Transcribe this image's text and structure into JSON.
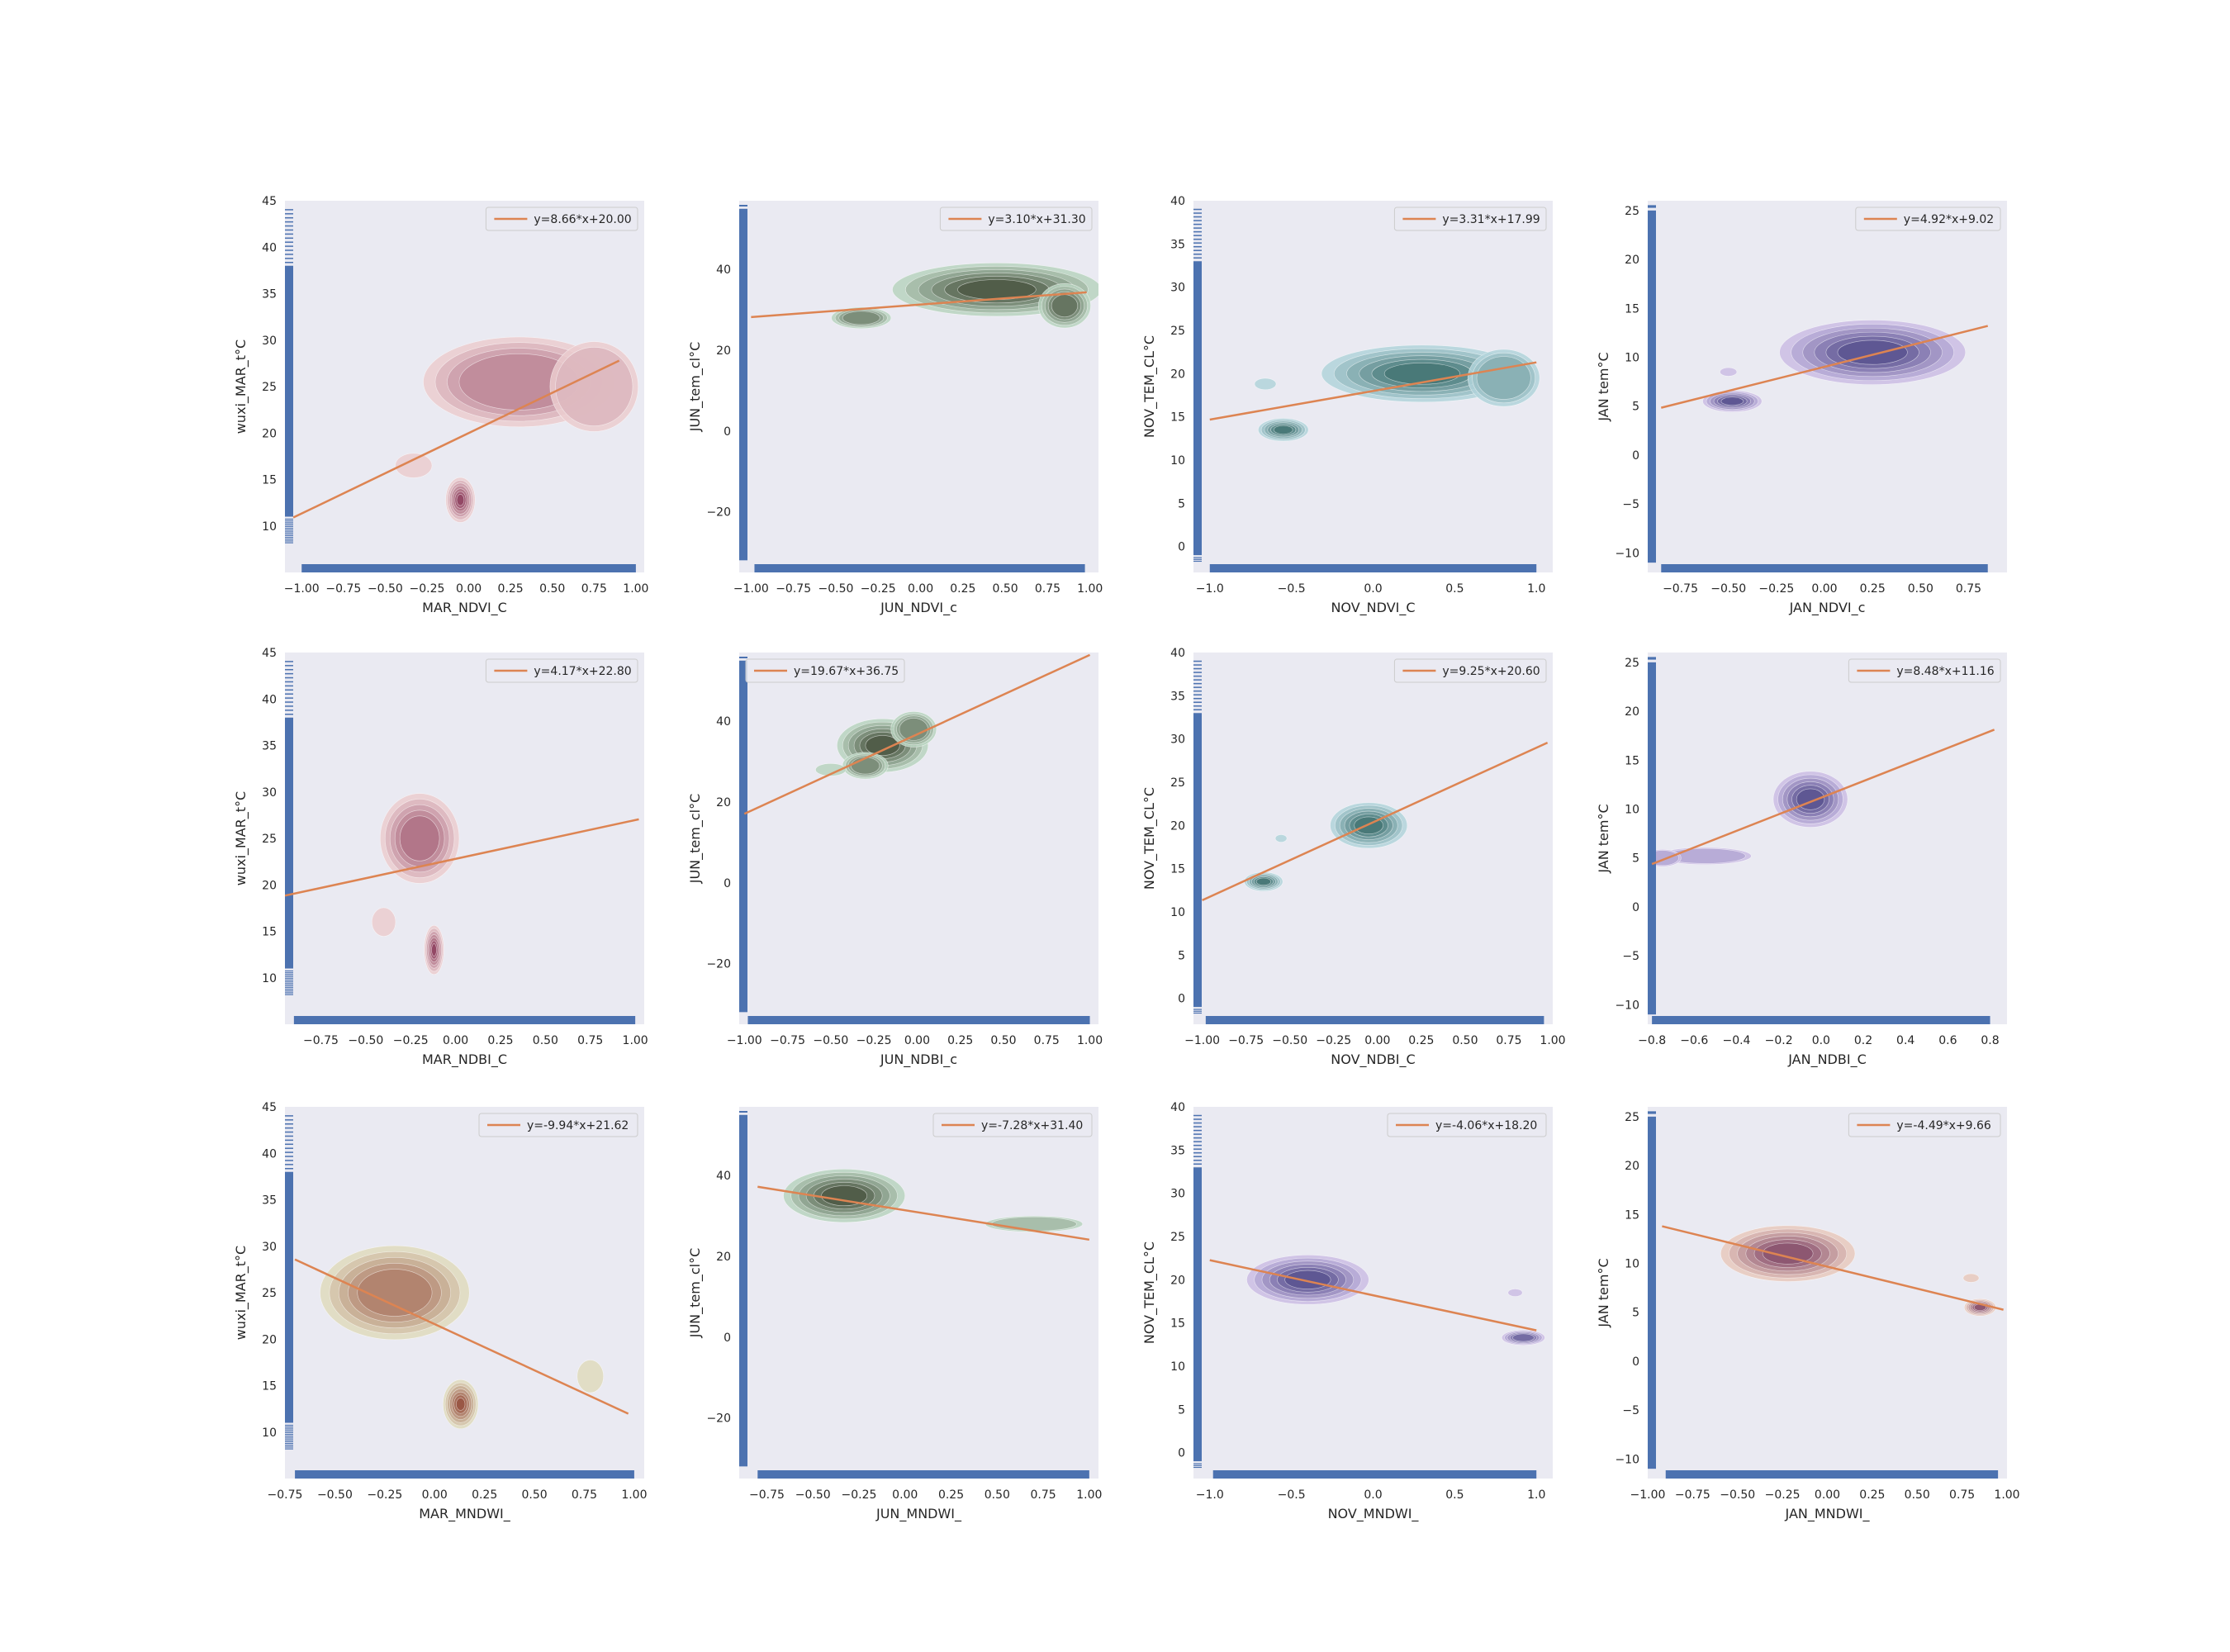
{
  "colors": {
    "background": "#eaeaf2",
    "rug": "#4c72b0",
    "fit_line": "#dd8452",
    "legend_bg": "#eaeaf2",
    "legend_border": "#cccccc"
  },
  "chart_data": [
    {
      "type": "scatter",
      "xlabel": "MAR_NDVI_C",
      "ylabel": "wuxi_MAR_t°C",
      "xlim": [
        -1.1,
        1.05
      ],
      "ylim": [
        5,
        45
      ],
      "xticks": [
        -1.0,
        -0.75,
        -0.5,
        -0.25,
        0.0,
        0.25,
        0.5,
        0.75,
        1.0
      ],
      "xtick_labels": [
        "−1.00",
        "−0.75",
        "−0.50",
        "−0.25",
        "0.00",
        "0.25",
        "0.50",
        "0.75",
        "1.00"
      ],
      "yticks": [
        10,
        15,
        20,
        25,
        30,
        35,
        40,
        45
      ],
      "ytick_labels": [
        "10",
        "15",
        "20",
        "25",
        "30",
        "35",
        "40",
        "45"
      ],
      "fit": {
        "label": "y=8.66*x+20.00",
        "slope": 8.66,
        "intercept": 20.0,
        "x_range": [
          -1.05,
          0.9
        ]
      },
      "palette": "reds",
      "density": [
        {
          "x": 0.3,
          "y": 25.5,
          "sx": 0.26,
          "sy": 2.2,
          "w": 0.5
        },
        {
          "x": 0.75,
          "y": 25.0,
          "sx": 0.12,
          "sy": 2.2,
          "w": 0.3
        },
        {
          "x": -0.05,
          "y": 12.8,
          "sx": 0.04,
          "sy": 1.1,
          "w": 0.9
        },
        {
          "x": -0.33,
          "y": 16.5,
          "sx": 0.05,
          "sy": 0.6,
          "w": 0.15
        }
      ],
      "rug_x": [
        -1.0,
        1.0
      ],
      "rug_y": [
        11,
        38
      ],
      "legend_pos": "upper right"
    },
    {
      "type": "scatter",
      "xlabel": "JUN_NDVI_c",
      "ylabel": "JUN_tem_cl°C",
      "xlim": [
        -1.07,
        1.05
      ],
      "ylim": [
        -35,
        57
      ],
      "xticks": [
        -1.0,
        -0.75,
        -0.5,
        -0.25,
        0.0,
        0.25,
        0.5,
        0.75,
        1.0
      ],
      "xtick_labels": [
        "−1.00",
        "−0.75",
        "−0.50",
        "−0.25",
        "0.00",
        "0.25",
        "0.50",
        "0.75",
        "1.00"
      ],
      "yticks": [
        -20,
        0,
        20,
        40
      ],
      "ytick_labels": [
        "−20",
        "0",
        "20",
        "40"
      ],
      "fit": {
        "label": "y=3.10*x+31.30",
        "slope": 3.1,
        "intercept": 31.3,
        "x_range": [
          -1.0,
          0.98
        ]
      },
      "palette": "greens",
      "density": [
        {
          "x": 0.45,
          "y": 35,
          "sx": 0.28,
          "sy": 3,
          "w": 0.7
        },
        {
          "x": 0.85,
          "y": 31,
          "sx": 0.07,
          "sy": 2.5,
          "w": 0.6
        },
        {
          "x": -0.35,
          "y": 28,
          "sx": 0.08,
          "sy": 1.2,
          "w": 0.5
        }
      ],
      "rug_x": [
        -0.98,
        0.97
      ],
      "rug_y": [
        -32,
        55
      ],
      "legend_pos": "upper right"
    },
    {
      "type": "scatter",
      "xlabel": "NOV_NDVI_C",
      "ylabel": "NOV_TEM_CL°C",
      "xlim": [
        -1.1,
        1.1
      ],
      "ylim": [
        -3,
        40
      ],
      "xticks": [
        -1.0,
        -0.5,
        0.0,
        0.5,
        1.0
      ],
      "xtick_labels": [
        "−1.0",
        "−0.5",
        "0.0",
        "0.5",
        "1.0"
      ],
      "yticks": [
        0,
        5,
        10,
        15,
        20,
        25,
        30,
        35,
        40
      ],
      "ytick_labels": [
        "0",
        "5",
        "10",
        "15",
        "20",
        "25",
        "30",
        "35",
        "40"
      ],
      "fit": {
        "label": "y=3.31*x+17.99",
        "slope": 3.31,
        "intercept": 17.99,
        "x_range": [
          -1.0,
          1.0
        ]
      },
      "palette": "teals",
      "density": [
        {
          "x": 0.3,
          "y": 20,
          "sx": 0.28,
          "sy": 1.5,
          "w": 0.8
        },
        {
          "x": 0.8,
          "y": 19.5,
          "sx": 0.1,
          "sy": 1.5,
          "w": 0.4
        },
        {
          "x": -0.55,
          "y": 13.5,
          "sx": 0.07,
          "sy": 0.6,
          "w": 0.7
        },
        {
          "x": -0.66,
          "y": 18.8,
          "sx": 0.03,
          "sy": 0.3,
          "w": 0.1
        }
      ],
      "rug_x": [
        -1.0,
        1.0
      ],
      "rug_y": [
        -1,
        33
      ],
      "legend_pos": "upper right"
    },
    {
      "type": "scatter",
      "xlabel": "JAN_NDVI_c",
      "ylabel": "JAN tem°C",
      "xlim": [
        -0.92,
        0.95
      ],
      "ylim": [
        -12,
        26
      ],
      "xticks": [
        -0.75,
        -0.5,
        -0.25,
        0.0,
        0.25,
        0.5,
        0.75
      ],
      "xtick_labels": [
        "−0.75",
        "−0.50",
        "−0.25",
        "0.00",
        "0.25",
        "0.50",
        "0.75"
      ],
      "yticks": [
        -10,
        -5,
        0,
        5,
        10,
        15,
        20,
        25
      ],
      "ytick_labels": [
        "−10",
        "−5",
        "0",
        "5",
        "10",
        "15",
        "20",
        "25"
      ],
      "fit": {
        "label": "y=4.92*x+9.02",
        "slope": 4.92,
        "intercept": 9.02,
        "x_range": [
          -0.85,
          0.85
        ]
      },
      "palette": "purples",
      "density": [
        {
          "x": 0.25,
          "y": 10.5,
          "sx": 0.22,
          "sy": 1.5,
          "w": 0.8
        },
        {
          "x": -0.48,
          "y": 5.5,
          "sx": 0.07,
          "sy": 0.5,
          "w": 0.7
        },
        {
          "x": -0.5,
          "y": 8.5,
          "sx": 0.02,
          "sy": 0.2,
          "w": 0.1
        }
      ],
      "rug_x": [
        -0.85,
        0.85
      ],
      "rug_y": [
        -11,
        25
      ],
      "legend_pos": "upper right"
    },
    {
      "type": "scatter",
      "xlabel": "MAR_NDBI_C",
      "ylabel": "wuxi_MAR_t°C",
      "xlim": [
        -0.95,
        1.05
      ],
      "ylim": [
        5,
        45
      ],
      "xticks": [
        -0.75,
        -0.5,
        -0.25,
        0.0,
        0.25,
        0.5,
        0.75,
        1.0
      ],
      "xtick_labels": [
        "−0.75",
        "−0.50",
        "−0.25",
        "0.00",
        "0.25",
        "0.50",
        "0.75",
        "1.00"
      ],
      "yticks": [
        10,
        15,
        20,
        25,
        30,
        35,
        40,
        45
      ],
      "ytick_labels": [
        "10",
        "15",
        "20",
        "25",
        "30",
        "35",
        "40",
        "45"
      ],
      "fit": {
        "label": "y=4.17*x+22.80",
        "slope": 4.17,
        "intercept": 22.8,
        "x_range": [
          -0.95,
          1.02
        ]
      },
      "palette": "reds",
      "density": [
        {
          "x": -0.2,
          "y": 25,
          "sx": 0.1,
          "sy": 2.2,
          "w": 0.6
        },
        {
          "x": -0.12,
          "y": 13,
          "sx": 0.025,
          "sy": 1.2,
          "w": 0.9
        },
        {
          "x": -0.4,
          "y": 16,
          "sx": 0.03,
          "sy": 0.7,
          "w": 0.15
        }
      ],
      "rug_x": [
        -0.9,
        1.0
      ],
      "rug_y": [
        11,
        38
      ],
      "legend_pos": "upper right"
    },
    {
      "type": "scatter",
      "xlabel": "JUN_NDBI_c",
      "ylabel": "JUN_tem_cl°C",
      "xlim": [
        -1.03,
        1.05
      ],
      "ylim": [
        -35,
        57
      ],
      "xticks": [
        -1.0,
        -0.75,
        -0.5,
        -0.25,
        0.0,
        0.25,
        0.5,
        0.75,
        1.0
      ],
      "xtick_labels": [
        "−1.00",
        "−0.75",
        "−0.50",
        "−0.25",
        "0.00",
        "0.25",
        "0.50",
        "0.75",
        "1.00"
      ],
      "yticks": [
        -20,
        0,
        20,
        40
      ],
      "ytick_labels": [
        "−20",
        "0",
        "20",
        "40"
      ],
      "fit": {
        "label": "y=19.67*x+36.75",
        "slope": 19.67,
        "intercept": 36.75,
        "x_range": [
          -1.0,
          1.0
        ]
      },
      "palette": "greens",
      "density": [
        {
          "x": -0.2,
          "y": 34,
          "sx": 0.12,
          "sy": 3,
          "w": 0.8
        },
        {
          "x": -0.02,
          "y": 38,
          "sx": 0.06,
          "sy": 2,
          "w": 0.5
        },
        {
          "x": -0.3,
          "y": 29,
          "sx": 0.06,
          "sy": 1.5,
          "w": 0.5
        },
        {
          "x": -0.5,
          "y": 28,
          "sx": 0.04,
          "sy": 0.7,
          "w": 0.15
        }
      ],
      "rug_x": [
        -0.98,
        1.0
      ],
      "rug_y": [
        -32,
        55
      ],
      "legend_pos": "upper left"
    },
    {
      "type": "scatter",
      "xlabel": "NOV_NDBI_C",
      "ylabel": "NOV_TEM_CL°C",
      "xlim": [
        -1.05,
        1.0
      ],
      "ylim": [
        -3,
        40
      ],
      "xticks": [
        -1.0,
        -0.75,
        -0.5,
        -0.25,
        0.0,
        0.25,
        0.5,
        0.75,
        1.0
      ],
      "xtick_labels": [
        "−1.00",
        "−0.75",
        "−0.50",
        "−0.25",
        "0.00",
        "0.25",
        "0.50",
        "0.75",
        "1.00"
      ],
      "yticks": [
        0,
        5,
        10,
        15,
        20,
        25,
        30,
        35,
        40
      ],
      "ytick_labels": [
        "0",
        "5",
        "10",
        "15",
        "20",
        "25",
        "30",
        "35",
        "40"
      ],
      "fit": {
        "label": "y=9.25*x+20.60",
        "slope": 9.25,
        "intercept": 20.6,
        "x_range": [
          -1.0,
          0.97
        ]
      },
      "palette": "teals",
      "density": [
        {
          "x": -0.05,
          "y": 20,
          "sx": 0.1,
          "sy": 1.2,
          "w": 0.8
        },
        {
          "x": -0.65,
          "y": 13.5,
          "sx": 0.05,
          "sy": 0.5,
          "w": 0.7
        },
        {
          "x": -0.55,
          "y": 18.5,
          "sx": 0.015,
          "sy": 0.2,
          "w": 0.08
        }
      ],
      "rug_x": [
        -0.98,
        0.95
      ],
      "rug_y": [
        -1,
        33
      ],
      "legend_pos": "upper right"
    },
    {
      "type": "scatter",
      "xlabel": "JAN_NDBI_C",
      "ylabel": "JAN tem°C",
      "xlim": [
        -0.82,
        0.88
      ],
      "ylim": [
        -12,
        26
      ],
      "xticks": [
        -0.8,
        -0.6,
        -0.4,
        -0.2,
        0.0,
        0.2,
        0.4,
        0.6,
        0.8
      ],
      "xtick_labels": [
        "−0.8",
        "−0.6",
        "−0.4",
        "−0.2",
        "0.0",
        "0.2",
        "0.4",
        "0.6",
        "0.8"
      ],
      "yticks": [
        -10,
        -5,
        0,
        5,
        10,
        15,
        20,
        25
      ],
      "ytick_labels": [
        "−10",
        "−5",
        "0",
        "5",
        "10",
        "15",
        "20",
        "25"
      ],
      "fit": {
        "label": "y=8.48*x+11.16",
        "slope": 8.48,
        "intercept": 11.16,
        "x_range": [
          -0.8,
          0.82
        ]
      },
      "palette": "purples",
      "density": [
        {
          "x": -0.05,
          "y": 11,
          "sx": 0.08,
          "sy": 1.3,
          "w": 0.8
        },
        {
          "x": -0.55,
          "y": 5.2,
          "sx": 0.1,
          "sy": 0.4,
          "w": 0.25
        },
        {
          "x": -0.75,
          "y": 5,
          "sx": 0.04,
          "sy": 0.4,
          "w": 0.2
        }
      ],
      "rug_x": [
        -0.8,
        0.8
      ],
      "rug_y": [
        -11,
        25
      ],
      "legend_pos": "upper right"
    },
    {
      "type": "scatter",
      "xlabel": "MAR_MNDWI_",
      "ylabel": "wuxi_MAR_t°C",
      "xlim": [
        -0.75,
        1.05
      ],
      "ylim": [
        5,
        45
      ],
      "xticks": [
        -0.75,
        -0.5,
        -0.25,
        0.0,
        0.25,
        0.5,
        0.75,
        1.0
      ],
      "xtick_labels": [
        "−0.75",
        "−0.50",
        "−0.25",
        "0.00",
        "0.25",
        "0.50",
        "0.75",
        "1.00"
      ],
      "yticks": [
        10,
        15,
        20,
        25,
        30,
        35,
        40,
        45
      ],
      "ytick_labels": [
        "10",
        "15",
        "20",
        "25",
        "30",
        "35",
        "40",
        "45"
      ],
      "fit": {
        "label": "y=-9.94*x+21.62",
        "slope": -9.94,
        "intercept": 21.62,
        "x_range": [
          -0.7,
          0.97
        ]
      },
      "palette": "olive",
      "density": [
        {
          "x": -0.2,
          "y": 25,
          "sx": 0.17,
          "sy": 2.3,
          "w": 0.6
        },
        {
          "x": 0.13,
          "y": 13,
          "sx": 0.04,
          "sy": 1.2,
          "w": 0.9
        },
        {
          "x": 0.78,
          "y": 16,
          "sx": 0.03,
          "sy": 0.8,
          "w": 0.15
        }
      ],
      "rug_x": [
        -0.7,
        1.0
      ],
      "rug_y": [
        11,
        38
      ],
      "legend_pos": "upper right"
    },
    {
      "type": "scatter",
      "xlabel": "JUN_MNDWI_",
      "ylabel": "JUN_tem_cl°C",
      "xlim": [
        -0.9,
        1.05
      ],
      "ylim": [
        -35,
        57
      ],
      "xticks": [
        -0.75,
        -0.5,
        -0.25,
        0.0,
        0.25,
        0.5,
        0.75,
        1.0
      ],
      "xtick_labels": [
        "−0.75",
        "−0.50",
        "−0.25",
        "0.00",
        "0.25",
        "0.50",
        "0.75",
        "1.00"
      ],
      "yticks": [
        -20,
        0,
        20,
        40
      ],
      "ytick_labels": [
        "−20",
        "0",
        "20",
        "40"
      ],
      "fit": {
        "label": "y=-7.28*x+31.40",
        "slope": -7.28,
        "intercept": 31.4,
        "x_range": [
          -0.8,
          1.0
        ]
      },
      "palette": "greens",
      "density": [
        {
          "x": -0.33,
          "y": 35,
          "sx": 0.15,
          "sy": 3,
          "w": 0.8
        },
        {
          "x": 0.7,
          "y": 28,
          "sx": 0.12,
          "sy": 0.9,
          "w": 0.3
        }
      ],
      "rug_x": [
        -0.8,
        1.0
      ],
      "rug_y": [
        -32,
        55
      ],
      "legend_pos": "upper right"
    },
    {
      "type": "scatter",
      "xlabel": "NOV_MNDWI_",
      "ylabel": "NOV_TEM_CL°C",
      "xlim": [
        -1.1,
        1.1
      ],
      "ylim": [
        -3,
        40
      ],
      "xticks": [
        -1.0,
        -0.5,
        0.0,
        0.5,
        1.0
      ],
      "xtick_labels": [
        "−1.0",
        "−0.5",
        "0.0",
        "0.5",
        "1.0"
      ],
      "yticks": [
        0,
        5,
        10,
        15,
        20,
        25,
        30,
        35,
        40
      ],
      "ytick_labels": [
        "0",
        "5",
        "10",
        "15",
        "20",
        "25",
        "30",
        "35",
        "40"
      ],
      "fit": {
        "label": "y=-4.06*x+18.20",
        "slope": -4.06,
        "intercept": 18.2,
        "x_range": [
          -1.0,
          1.0
        ]
      },
      "palette": "purples",
      "density": [
        {
          "x": -0.4,
          "y": 20,
          "sx": 0.17,
          "sy": 1.3,
          "w": 0.7
        },
        {
          "x": 0.92,
          "y": 13.3,
          "sx": 0.06,
          "sy": 0.4,
          "w": 0.6
        },
        {
          "x": 0.87,
          "y": 18.5,
          "sx": 0.02,
          "sy": 0.2,
          "w": 0.08
        }
      ],
      "rug_x": [
        -0.98,
        1.0
      ],
      "rug_y": [
        -1,
        33
      ],
      "legend_pos": "upper right"
    },
    {
      "type": "scatter",
      "xlabel": "JAN_MNDWI_",
      "ylabel": "JAN tem°C",
      "xlim": [
        -1.0,
        1.0
      ],
      "ylim": [
        -12,
        26
      ],
      "xticks": [
        -1.0,
        -0.75,
        -0.5,
        -0.25,
        0.0,
        0.25,
        0.5,
        0.75,
        1.0
      ],
      "xtick_labels": [
        "−1.00",
        "−0.75",
        "−0.50",
        "−0.25",
        "0.00",
        "0.25",
        "0.50",
        "0.75",
        "1.00"
      ],
      "yticks": [
        -10,
        -5,
        0,
        5,
        10,
        15,
        20,
        25
      ],
      "ytick_labels": [
        "−10",
        "−5",
        "0",
        "5",
        "10",
        "15",
        "20",
        "25"
      ],
      "fit": {
        "label": "y=-4.49*x+9.66",
        "slope": -4.49,
        "intercept": 9.66,
        "x_range": [
          -0.92,
          0.98
        ]
      },
      "palette": "oranges",
      "density": [
        {
          "x": -0.22,
          "y": 11,
          "sx": 0.17,
          "sy": 1.3,
          "w": 0.7
        },
        {
          "x": 0.85,
          "y": 5.5,
          "sx": 0.04,
          "sy": 0.4,
          "w": 0.7
        },
        {
          "x": 0.8,
          "y": 8.5,
          "sx": 0.02,
          "sy": 0.2,
          "w": 0.08
        }
      ],
      "rug_x": [
        -0.9,
        0.95
      ],
      "rug_y": [
        -11,
        25
      ],
      "legend_pos": "upper right"
    }
  ]
}
